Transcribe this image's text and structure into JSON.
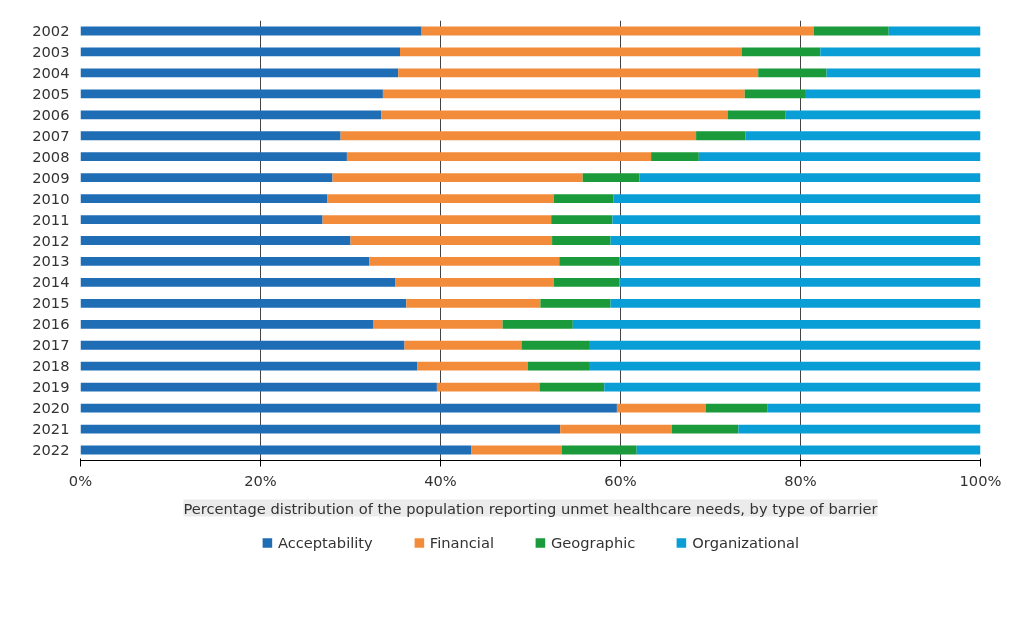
{
  "chart_data": {
    "type": "bar",
    "orientation": "horizontal",
    "stacked": true,
    "title": "Percentage distribution of the population reporting unmet healthcare needs, by type of barrier",
    "categories": [
      "2002",
      "2003",
      "2004",
      "2005",
      "2006",
      "2007",
      "2008",
      "2009",
      "2010",
      "2011",
      "2012",
      "2013",
      "2014",
      "2015",
      "2016",
      "2017",
      "2018",
      "2019",
      "2020",
      "2021",
      "2022"
    ],
    "series": [
      {
        "name": "Acceptability",
        "color": "#1f6db5",
        "values": [
          37.9,
          35.5,
          35.3,
          33.6,
          33.4,
          28.9,
          29.6,
          28.0,
          27.4,
          26.9,
          30.0,
          32.1,
          35.0,
          36.2,
          32.5,
          36.0,
          37.4,
          39.6,
          59.6,
          53.3,
          43.4
        ]
      },
      {
        "name": "Financial",
        "color": "#f28c3a",
        "values": [
          43.6,
          38.0,
          40.0,
          40.2,
          38.5,
          39.5,
          33.8,
          27.8,
          25.2,
          25.4,
          22.4,
          21.1,
          17.6,
          14.9,
          14.4,
          13.0,
          12.3,
          11.4,
          9.9,
          12.4,
          10.1
        ]
      },
      {
        "name": "Geographic",
        "color": "#1a9a3a",
        "values": [
          8.3,
          8.7,
          7.6,
          6.8,
          6.4,
          5.5,
          5.3,
          6.3,
          6.6,
          6.8,
          6.5,
          6.7,
          7.3,
          7.8,
          7.8,
          7.6,
          6.9,
          7.2,
          6.8,
          7.4,
          8.3
        ]
      },
      {
        "name": "Organizational",
        "color": "#0a9ed6",
        "values": [
          10.2,
          17.8,
          17.1,
          19.4,
          21.7,
          26.1,
          31.3,
          37.9,
          40.8,
          40.9,
          41.1,
          40.1,
          40.1,
          41.1,
          45.3,
          43.4,
          43.4,
          41.8,
          23.7,
          26.9,
          38.2
        ]
      }
    ],
    "xlim": [
      0,
      100
    ],
    "xticks": [
      {
        "value": 0,
        "label": "0%"
      },
      {
        "value": 20,
        "label": "20%"
      },
      {
        "value": 40,
        "label": "40%"
      },
      {
        "value": 60,
        "label": "60%"
      },
      {
        "value": 80,
        "label": "80%"
      },
      {
        "value": 100,
        "label": "100%"
      }
    ],
    "grid": "x",
    "legend": "bottom"
  }
}
